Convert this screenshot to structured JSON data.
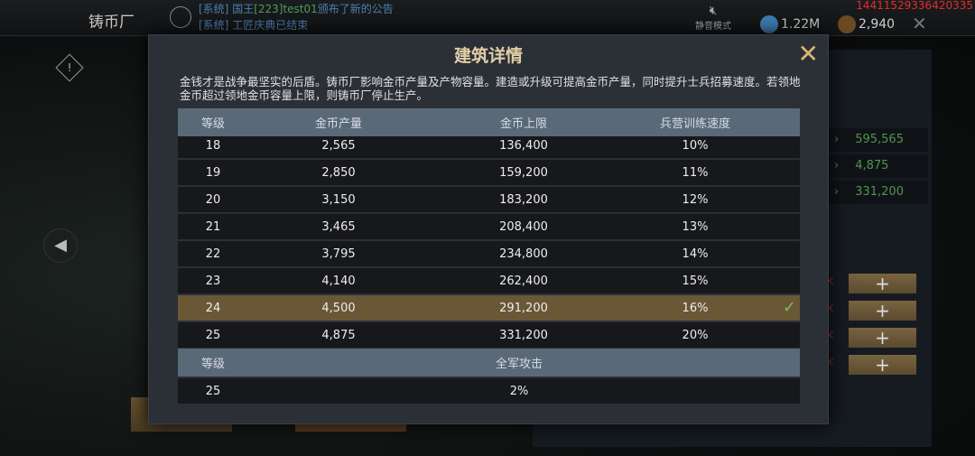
{
  "topbar": {
    "building_name": "铸币厂",
    "messages": [
      {
        "tag": "[系统]",
        "pre": " 国王",
        "name": "[223]test01",
        "post": "颁布了新的公告"
      },
      {
        "tag": "[系统]",
        "pre": " 工匠庆典已结束",
        "name": "",
        "post": ""
      }
    ],
    "mute_label": "静音模式",
    "gems": "1.22M",
    "gold": "2,940",
    "user_id": "14411529336420335"
  },
  "right_panel": {
    "values": [
      "595,565",
      "4,875",
      "331,200"
    ]
  },
  "modal": {
    "title": "建筑详情",
    "description": "金钱才是战争最坚实的后盾。铸币厂影响金币产量及产物容量。建造或升级可提高金币产量，同时提升士兵招募速度。若领地金币超过领地金币容量上限，则铸币厂停止生产。",
    "table": {
      "headers": [
        "等级",
        "金币产量",
        "金币上限",
        "兵营训练速度"
      ],
      "rows": [
        [
          "18",
          "2,565",
          "136,400",
          "10%"
        ],
        [
          "19",
          "2,850",
          "159,200",
          "11%"
        ],
        [
          "20",
          "3,150",
          "183,200",
          "12%"
        ],
        [
          "21",
          "3,465",
          "208,400",
          "13%"
        ],
        [
          "22",
          "3,795",
          "234,800",
          "14%"
        ],
        [
          "23",
          "4,140",
          "262,400",
          "15%"
        ],
        [
          "24",
          "4,500",
          "291,200",
          "16%"
        ],
        [
          "25",
          "4,875",
          "331,200",
          "20%"
        ]
      ],
      "current_level": "24"
    },
    "bonus_table": {
      "headers": [
        "等级",
        "全军攻击"
      ],
      "rows": [
        [
          "25",
          "2%"
        ]
      ]
    }
  },
  "colors": {
    "accent_gold": "#d9b673",
    "selected_row": "#695736",
    "header": "#5a6978",
    "positive": "#52944d",
    "uid_red": "#e52b2b"
  }
}
